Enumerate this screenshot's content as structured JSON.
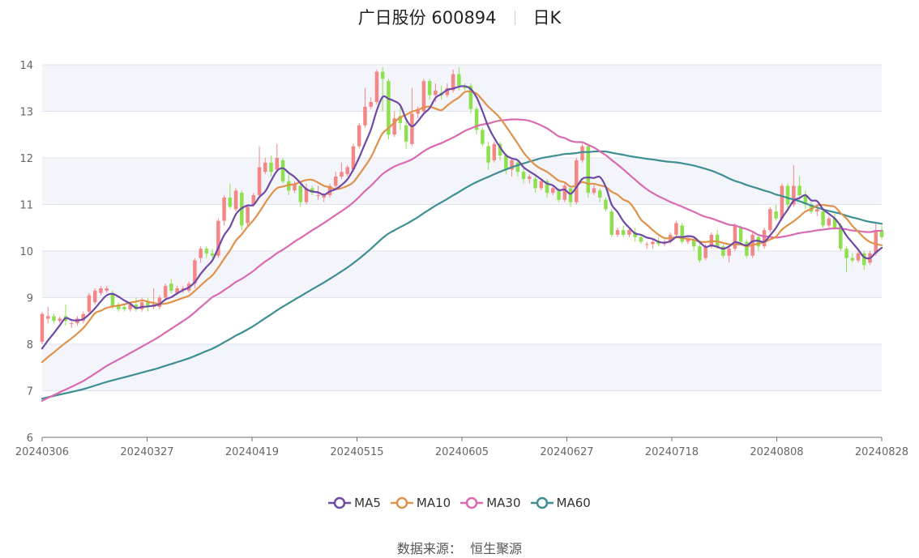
{
  "title": {
    "name": "广日股份 600894",
    "period": "日K"
  },
  "source": {
    "label": "数据来源：",
    "value": "恒生聚源"
  },
  "colors": {
    "up": "#f58686",
    "down": "#8ee04e",
    "MA5": "#6e4aa6",
    "MA10": "#e0924a",
    "MA30": "#d96bb0",
    "MA60": "#3f8f92",
    "band": "#f3f5fb",
    "grid": "#dfe3ee"
  },
  "chart_data": {
    "type": "candlestick",
    "x_ticks": [
      "20240306",
      "20240327",
      "20240419",
      "20240515",
      "20240605",
      "20240627",
      "20240718",
      "20240808",
      "20240828"
    ],
    "ylim": [
      6,
      14
    ],
    "y_ticks": [
      6,
      7,
      8,
      9,
      10,
      11,
      12,
      13,
      14
    ],
    "candles": [
      [
        8.05,
        8.65,
        8.0,
        8.7
      ],
      [
        8.55,
        8.6,
        8.45,
        8.8
      ],
      [
        8.6,
        8.5,
        8.45,
        8.65
      ],
      [
        8.5,
        8.55,
        8.45,
        8.6
      ],
      [
        8.6,
        8.5,
        8.4,
        8.85
      ],
      [
        8.45,
        8.45,
        8.35,
        8.5
      ],
      [
        8.45,
        8.55,
        8.4,
        8.6
      ],
      [
        8.5,
        8.65,
        8.45,
        8.7
      ],
      [
        8.7,
        9.05,
        8.65,
        9.1
      ],
      [
        8.9,
        9.15,
        8.85,
        9.2
      ],
      [
        9.1,
        9.2,
        9.05,
        9.25
      ],
      [
        9.15,
        9.2,
        9.1,
        9.25
      ],
      [
        9.1,
        8.8,
        8.75,
        9.15
      ],
      [
        8.85,
        8.75,
        8.7,
        8.9
      ],
      [
        8.8,
        8.75,
        8.7,
        8.85
      ],
      [
        8.75,
        8.85,
        8.7,
        8.9
      ],
      [
        8.85,
        8.75,
        8.7,
        9.0
      ],
      [
        8.75,
        8.9,
        8.7,
        9.0
      ],
      [
        8.9,
        8.8,
        8.7,
        9.0
      ],
      [
        8.8,
        8.85,
        8.75,
        9.2
      ],
      [
        8.8,
        9.0,
        8.75,
        9.05
      ],
      [
        9.0,
        9.25,
        8.95,
        9.3
      ],
      [
        9.3,
        9.15,
        9.1,
        9.4
      ],
      [
        9.1,
        9.2,
        9.05,
        9.25
      ],
      [
        9.15,
        9.2,
        9.1,
        9.25
      ],
      [
        9.15,
        9.3,
        9.1,
        9.35
      ],
      [
        9.3,
        9.8,
        9.2,
        9.85
      ],
      [
        9.85,
        10.05,
        9.75,
        10.1
      ],
      [
        10.05,
        9.95,
        9.85,
        10.1
      ],
      [
        9.95,
        9.9,
        9.85,
        10.05
      ],
      [
        9.9,
        10.65,
        9.85,
        10.7
      ],
      [
        10.65,
        11.15,
        10.55,
        11.2
      ],
      [
        11.15,
        10.95,
        10.9,
        11.45
      ],
      [
        10.9,
        11.3,
        10.85,
        11.35
      ],
      [
        11.25,
        10.55,
        10.45,
        11.3
      ],
      [
        10.6,
        10.95,
        10.55,
        11.0
      ],
      [
        11.0,
        11.2,
        10.95,
        11.25
      ],
      [
        11.2,
        11.8,
        11.15,
        12.25
      ],
      [
        11.7,
        11.9,
        11.65,
        12.0
      ],
      [
        11.9,
        11.7,
        11.6,
        12.05
      ],
      [
        11.75,
        12.0,
        11.7,
        12.3
      ],
      [
        11.95,
        11.5,
        11.45,
        12.0
      ],
      [
        11.5,
        11.3,
        11.2,
        11.7
      ],
      [
        11.3,
        11.45,
        11.25,
        11.5
      ],
      [
        11.4,
        11.05,
        10.95,
        11.45
      ],
      [
        11.05,
        11.35,
        11.0,
        11.45
      ],
      [
        11.35,
        11.25,
        11.2,
        11.4
      ],
      [
        11.2,
        11.2,
        11.1,
        11.4
      ],
      [
        11.15,
        11.2,
        11.05,
        11.25
      ],
      [
        11.2,
        11.4,
        11.15,
        11.45
      ],
      [
        11.4,
        11.6,
        11.35,
        11.7
      ],
      [
        11.6,
        11.7,
        11.55,
        11.9
      ],
      [
        11.65,
        11.8,
        11.6,
        11.85
      ],
      [
        11.75,
        12.25,
        11.7,
        12.3
      ],
      [
        12.25,
        12.7,
        12.2,
        12.75
      ],
      [
        12.7,
        13.1,
        12.65,
        13.5
      ],
      [
        13.1,
        13.2,
        13.05,
        13.3
      ],
      [
        13.2,
        13.85,
        13.15,
        13.9
      ],
      [
        13.85,
        13.7,
        13.0,
        13.95
      ],
      [
        13.65,
        12.5,
        12.4,
        13.7
      ],
      [
        12.5,
        12.85,
        12.45,
        13.0
      ],
      [
        12.9,
        12.75,
        12.6,
        13.1
      ],
      [
        12.7,
        12.35,
        12.2,
        12.85
      ],
      [
        12.3,
        12.95,
        12.25,
        13.5
      ],
      [
        12.95,
        13.05,
        12.85,
        13.1
      ],
      [
        13.0,
        13.65,
        12.95,
        13.7
      ],
      [
        13.65,
        13.35,
        13.25,
        13.7
      ],
      [
        13.35,
        13.45,
        13.2,
        13.6
      ],
      [
        13.4,
        13.35,
        13.25,
        13.55
      ],
      [
        13.35,
        13.5,
        13.3,
        13.6
      ],
      [
        13.45,
        13.8,
        13.4,
        13.9
      ],
      [
        13.8,
        13.55,
        13.45,
        13.95
      ],
      [
        13.55,
        13.5,
        13.45,
        13.6
      ],
      [
        13.55,
        13.05,
        12.95,
        13.6
      ],
      [
        13.05,
        12.6,
        12.5,
        13.1
      ],
      [
        12.6,
        12.3,
        12.25,
        12.65
      ],
      [
        12.25,
        11.9,
        11.75,
        12.35
      ],
      [
        11.95,
        12.3,
        11.9,
        12.35
      ],
      [
        12.3,
        12.05,
        11.95,
        12.35
      ],
      [
        12.05,
        11.75,
        11.65,
        12.1
      ],
      [
        11.75,
        11.95,
        11.6,
        12.0
      ],
      [
        11.9,
        11.7,
        11.6,
        11.95
      ],
      [
        11.7,
        11.55,
        11.45,
        11.8
      ],
      [
        11.55,
        11.6,
        11.45,
        11.65
      ],
      [
        11.55,
        11.35,
        11.25,
        11.6
      ],
      [
        11.35,
        11.5,
        11.3,
        11.55
      ],
      [
        11.5,
        11.25,
        11.15,
        11.55
      ],
      [
        11.25,
        11.35,
        11.2,
        11.4
      ],
      [
        11.3,
        11.1,
        11.05,
        11.35
      ],
      [
        11.1,
        11.4,
        11.05,
        11.45
      ],
      [
        11.35,
        11.05,
        10.95,
        11.4
      ],
      [
        11.05,
        11.95,
        11.0,
        12.0
      ],
      [
        11.95,
        12.25,
        11.9,
        12.3
      ],
      [
        12.25,
        11.25,
        11.15,
        12.3
      ],
      [
        11.25,
        11.35,
        11.2,
        11.45
      ],
      [
        11.3,
        11.15,
        11.05,
        11.35
      ],
      [
        11.1,
        10.9,
        10.85,
        11.15
      ],
      [
        10.85,
        10.35,
        10.3,
        10.9
      ],
      [
        10.35,
        10.45,
        10.3,
        10.5
      ],
      [
        10.45,
        10.35,
        10.3,
        10.55
      ],
      [
        10.35,
        10.45,
        10.3,
        10.5
      ],
      [
        10.4,
        10.3,
        10.2,
        10.5
      ],
      [
        10.3,
        10.2,
        10.15,
        10.35
      ],
      [
        10.15,
        10.15,
        10.05,
        10.2
      ],
      [
        10.15,
        10.2,
        10.05,
        10.25
      ],
      [
        10.2,
        10.15,
        10.1,
        10.3
      ],
      [
        10.15,
        10.2,
        10.1,
        10.25
      ],
      [
        10.2,
        10.35,
        10.15,
        10.4
      ],
      [
        10.35,
        10.6,
        10.3,
        10.65
      ],
      [
        10.55,
        10.2,
        10.15,
        10.6
      ],
      [
        10.2,
        10.25,
        10.15,
        10.3
      ],
      [
        10.25,
        10.1,
        10.0,
        10.3
      ],
      [
        10.1,
        9.8,
        9.75,
        10.15
      ],
      [
        9.85,
        10.1,
        9.8,
        10.15
      ],
      [
        10.1,
        10.35,
        10.05,
        10.4
      ],
      [
        10.35,
        10.1,
        10.05,
        10.45
      ],
      [
        10.1,
        9.9,
        9.85,
        10.15
      ],
      [
        9.9,
        10.05,
        9.75,
        10.1
      ],
      [
        10.05,
        10.55,
        10.0,
        10.6
      ],
      [
        10.5,
        10.2,
        10.15,
        10.55
      ],
      [
        10.2,
        9.9,
        9.85,
        10.25
      ],
      [
        9.9,
        10.35,
        9.85,
        10.4
      ],
      [
        10.3,
        10.1,
        10.0,
        10.35
      ],
      [
        10.1,
        10.45,
        10.05,
        10.5
      ],
      [
        10.45,
        10.9,
        10.4,
        10.95
      ],
      [
        10.85,
        10.7,
        10.65,
        11.0
      ],
      [
        10.7,
        11.4,
        10.65,
        11.45
      ],
      [
        11.4,
        11.0,
        10.9,
        11.45
      ],
      [
        11.0,
        11.4,
        10.95,
        11.85
      ],
      [
        11.4,
        11.2,
        11.1,
        11.6
      ],
      [
        11.2,
        11.0,
        10.9,
        11.3
      ],
      [
        11.0,
        10.85,
        10.8,
        11.1
      ],
      [
        10.85,
        10.9,
        10.75,
        10.95
      ],
      [
        10.85,
        10.55,
        10.5,
        10.9
      ],
      [
        10.55,
        10.7,
        10.5,
        10.75
      ],
      [
        10.7,
        10.5,
        10.45,
        10.8
      ],
      [
        10.55,
        10.05,
        10.0,
        10.6
      ],
      [
        10.05,
        9.85,
        9.55,
        10.1
      ],
      [
        9.85,
        9.8,
        9.75,
        9.95
      ],
      [
        9.8,
        9.95,
        9.75,
        10.0
      ],
      [
        9.95,
        9.7,
        9.6,
        10.0
      ],
      [
        9.75,
        9.95,
        9.7,
        10.0
      ],
      [
        9.95,
        10.45,
        9.9,
        10.6
      ],
      [
        10.45,
        10.3,
        10.25,
        10.55
      ]
    ],
    "series": [
      {
        "name": "MA5",
        "window": 5
      },
      {
        "name": "MA10",
        "window": 10
      },
      {
        "name": "MA30",
        "window": 30
      },
      {
        "name": "MA60",
        "window": 60
      }
    ],
    "legend_position": "bottom"
  }
}
